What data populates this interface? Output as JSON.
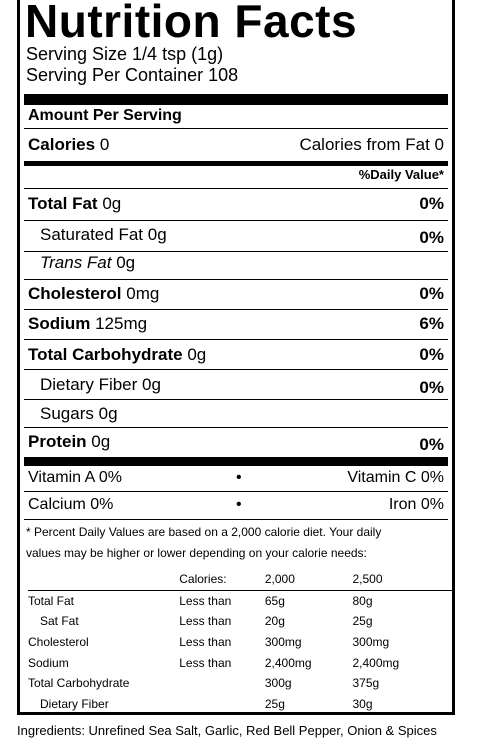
{
  "title": "Nutrition Facts",
  "serving_size": "Serving Size 1/4 tsp (1g)",
  "serving_per_container": "Serving Per Container 108",
  "amount_per_serving": "Amount Per Serving",
  "calories": {
    "label": "Calories",
    "value": "0",
    "from_fat": "Calories from Fat 0"
  },
  "daily_value_header": "%Daily Value*",
  "nutrients": [
    {
      "name": "Total Fat",
      "amount": "0g",
      "dv": "0%"
    },
    {
      "name": "Saturated Fat",
      "amount": "0g",
      "dv": "0%"
    },
    {
      "name": "Trans Fat",
      "amount": "0g",
      "dv": ""
    },
    {
      "name": "Cholesterol",
      "amount": "0mg",
      "dv": "0%"
    },
    {
      "name": "Sodium",
      "amount": "125mg",
      "dv": "6%"
    },
    {
      "name": "Total Carbohydrate",
      "amount": "0g",
      "dv": "0%"
    },
    {
      "name": "Dietary Fiber",
      "amount": "0g",
      "dv": "0%"
    },
    {
      "name": "Sugars",
      "amount": "0g",
      "dv": ""
    },
    {
      "name": "Protein",
      "amount": "0g",
      "dv": "0%"
    }
  ],
  "vitamins": {
    "vitamin_a": "Vitamin A 0%",
    "vitamin_c": "Vitamin C 0%",
    "calcium": "Calcium 0%",
    "iron": "Iron 0%",
    "bullet": "•"
  },
  "footnote": {
    "line1": "* Percent Daily Values are based on a 2,000 calorie diet. Your daily",
    "line2": "values may be higher or lower depending on your calorie needs:"
  },
  "dv_table": {
    "header": [
      "",
      "Calories:",
      "2,000",
      "2,500"
    ],
    "rows": [
      [
        "Total Fat",
        "Less than",
        "65g",
        "80g"
      ],
      [
        "Sat Fat",
        "Less than",
        "20g",
        "25g"
      ],
      [
        "Cholesterol",
        "Less than",
        "300mg",
        "300mg"
      ],
      [
        "Sodium",
        "Less than",
        "2,400mg",
        "2,400mg"
      ],
      [
        "Total Carbohydrate",
        "",
        "300g",
        "375g"
      ],
      [
        "Dietary Fiber",
        "",
        "25g",
        "30g"
      ]
    ]
  },
  "ingredients": "Ingredients: Unrefined Sea Salt, Garlic, Red Bell Pepper, Onion & Spices"
}
